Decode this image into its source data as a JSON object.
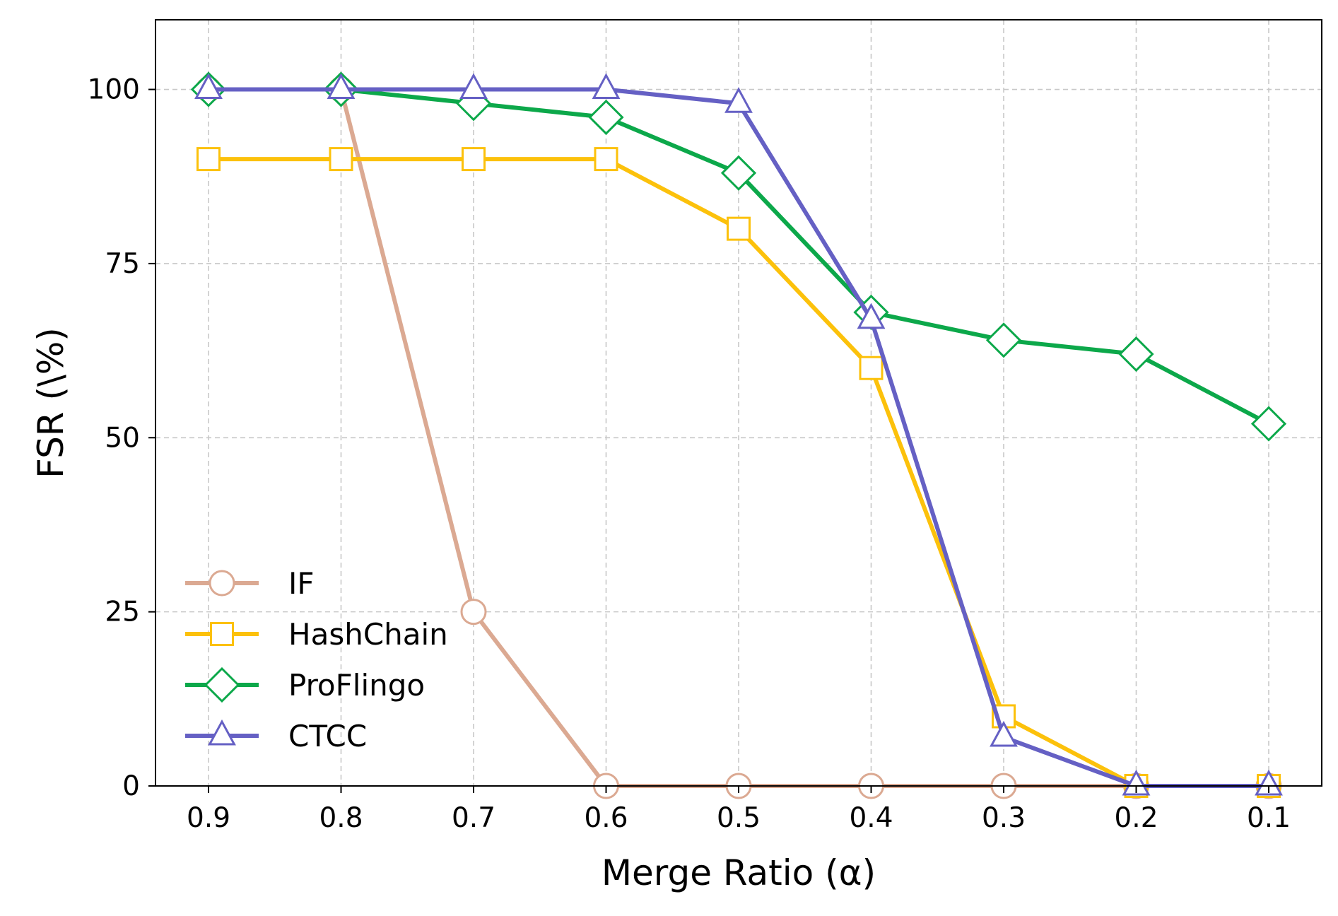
{
  "chart_data": {
    "type": "line",
    "xlabel": "Merge Ratio (α)",
    "ylabel": "FSR (\\%)",
    "x": [
      "0.9",
      "0.8",
      "0.7",
      "0.6",
      "0.5",
      "0.4",
      "0.3",
      "0.2",
      "0.1"
    ],
    "xlim": [
      0.94,
      0.06
    ],
    "ylim": [
      0,
      110
    ],
    "yticks": [
      "0",
      "25",
      "50",
      "75",
      "100"
    ],
    "grid": true,
    "legend_position": "lower-left",
    "series": [
      {
        "name": "IF",
        "color": "#dba992",
        "marker": "circle",
        "values": [
          100,
          100,
          25,
          0,
          0,
          0,
          0,
          0,
          0
        ]
      },
      {
        "name": "HashChain",
        "color": "#fcc10b",
        "marker": "square",
        "values": [
          90,
          90,
          90,
          90,
          80,
          60,
          10,
          0,
          0
        ]
      },
      {
        "name": "ProFlingo",
        "color": "#0ca84a",
        "marker": "diamond",
        "values": [
          100,
          100,
          98,
          96,
          88,
          68,
          64,
          62,
          52
        ]
      },
      {
        "name": "CTCC",
        "color": "#6560c4",
        "marker": "triangle",
        "values": [
          100,
          100,
          100,
          100,
          98,
          67,
          7,
          0,
          0
        ]
      }
    ]
  }
}
